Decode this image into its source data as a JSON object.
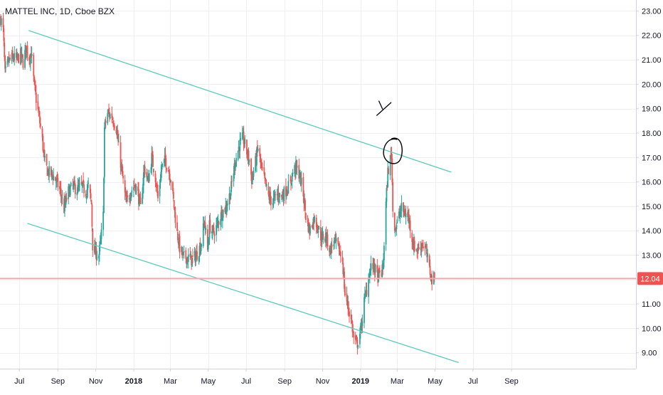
{
  "header": {
    "title": "MATTEL INC, 1D, Cboe BZX"
  },
  "chart_data": {
    "type": "candlestick",
    "title": "MATTEL INC, 1D, Cboe BZX",
    "ylim": [
      8.35,
      23.45
    ],
    "y_ticks": [
      9.0,
      10.0,
      11.0,
      12.0,
      13.0,
      14.0,
      15.0,
      16.0,
      17.0,
      18.0,
      19.0,
      20.0,
      21.0,
      22.0,
      23.0
    ],
    "y_tick_labels": [
      "9.00",
      "10.00",
      "11.00",
      "12.00",
      "13.00",
      "14.00",
      "15.00",
      "16.00",
      "17.00",
      "18.00",
      "19.00",
      "20.00",
      "21.00",
      "22.00",
      "23.00"
    ],
    "x_ticks": [
      {
        "label": "Jul",
        "date": "2017-07-01",
        "bold": false
      },
      {
        "label": "Sep",
        "date": "2017-09-01",
        "bold": false
      },
      {
        "label": "Nov",
        "date": "2017-11-01",
        "bold": false
      },
      {
        "label": "2018",
        "date": "2018-01-01",
        "bold": true
      },
      {
        "label": "Mar",
        "date": "2018-03-01",
        "bold": false
      },
      {
        "label": "May",
        "date": "2018-05-01",
        "bold": false
      },
      {
        "label": "Jul",
        "date": "2018-07-01",
        "bold": false
      },
      {
        "label": "Sep",
        "date": "2018-09-01",
        "bold": false
      },
      {
        "label": "Nov",
        "date": "2018-11-01",
        "bold": false
      },
      {
        "label": "2019",
        "date": "2019-01-01",
        "bold": true
      },
      {
        "label": "Mar",
        "date": "2019-03-01",
        "bold": false
      },
      {
        "label": "May",
        "date": "2019-05-01",
        "bold": false
      },
      {
        "label": "Jul",
        "date": "2019-07-01",
        "bold": false
      },
      {
        "label": "Sep",
        "date": "2019-09-01",
        "bold": false
      }
    ],
    "price_anchors": [
      [
        "2017-06-01",
        22.7
      ],
      [
        "2017-06-05",
        22.2
      ],
      [
        "2017-06-08",
        20.4
      ],
      [
        "2017-06-13",
        20.9
      ],
      [
        "2017-06-20",
        21.1
      ],
      [
        "2017-06-27",
        21.0
      ],
      [
        "2017-07-03",
        21.2
      ],
      [
        "2017-07-07",
        20.9
      ],
      [
        "2017-07-12",
        21.5
      ],
      [
        "2017-07-17",
        21.1
      ],
      [
        "2017-07-20",
        21.3
      ],
      [
        "2017-07-25",
        19.9
      ],
      [
        "2017-07-28",
        19.4
      ],
      [
        "2017-08-02",
        18.6
      ],
      [
        "2017-08-07",
        17.7
      ],
      [
        "2017-08-10",
        16.9
      ],
      [
        "2017-08-16",
        16.4
      ],
      [
        "2017-08-23",
        16.3
      ],
      [
        "2017-08-30",
        16.0
      ],
      [
        "2017-09-05",
        15.6
      ],
      [
        "2017-09-11",
        14.9
      ],
      [
        "2017-09-18",
        15.6
      ],
      [
        "2017-09-25",
        15.8
      ],
      [
        "2017-10-03",
        15.7
      ],
      [
        "2017-10-10",
        15.8
      ],
      [
        "2017-10-16",
        15.6
      ],
      [
        "2017-10-20",
        15.8
      ],
      [
        "2017-10-25",
        15.1
      ],
      [
        "2017-10-27",
        13.4
      ],
      [
        "2017-10-31",
        13.1
      ],
      [
        "2017-11-06",
        13.0
      ],
      [
        "2017-11-09",
        13.6
      ],
      [
        "2017-11-13",
        14.6
      ],
      [
        "2017-11-15",
        18.2
      ],
      [
        "2017-11-20",
        18.8
      ],
      [
        "2017-11-27",
        18.7
      ],
      [
        "2017-12-04",
        18.2
      ],
      [
        "2017-12-08",
        17.4
      ],
      [
        "2017-12-14",
        16.2
      ],
      [
        "2017-12-20",
        15.1
      ],
      [
        "2017-12-27",
        15.6
      ],
      [
        "2018-01-03",
        15.9
      ],
      [
        "2018-01-08",
        15.5
      ],
      [
        "2018-01-12",
        14.9
      ],
      [
        "2018-01-18",
        16.6
      ],
      [
        "2018-01-24",
        16.0
      ],
      [
        "2018-01-30",
        17.0
      ],
      [
        "2018-02-05",
        16.2
      ],
      [
        "2018-02-09",
        15.3
      ],
      [
        "2018-02-15",
        16.6
      ],
      [
        "2018-02-21",
        16.9
      ],
      [
        "2018-02-27",
        16.4
      ],
      [
        "2018-03-02",
        16.1
      ],
      [
        "2018-03-06",
        15.2
      ],
      [
        "2018-03-12",
        13.9
      ],
      [
        "2018-03-16",
        13.3
      ],
      [
        "2018-03-22",
        12.9
      ],
      [
        "2018-03-28",
        12.9
      ],
      [
        "2018-04-05",
        12.8
      ],
      [
        "2018-04-12",
        13.0
      ],
      [
        "2018-04-19",
        13.4
      ],
      [
        "2018-04-25",
        14.4
      ],
      [
        "2018-04-30",
        13.2
      ],
      [
        "2018-05-03",
        14.2
      ],
      [
        "2018-05-09",
        13.9
      ],
      [
        "2018-05-15",
        14.2
      ],
      [
        "2018-05-22",
        14.7
      ],
      [
        "2018-05-30",
        15.0
      ],
      [
        "2018-06-06",
        15.6
      ],
      [
        "2018-06-13",
        16.8
      ],
      [
        "2018-06-20",
        17.5
      ],
      [
        "2018-06-26",
        17.8
      ],
      [
        "2018-07-02",
        17.2
      ],
      [
        "2018-07-06",
        16.9
      ],
      [
        "2018-07-10",
        16.1
      ],
      [
        "2018-07-16",
        16.8
      ],
      [
        "2018-07-20",
        17.4
      ],
      [
        "2018-07-25",
        16.6
      ],
      [
        "2018-07-31",
        16.0
      ],
      [
        "2018-08-06",
        15.4
      ],
      [
        "2018-08-13",
        15.2
      ],
      [
        "2018-08-20",
        15.5
      ],
      [
        "2018-08-27",
        15.4
      ],
      [
        "2018-09-04",
        15.7
      ],
      [
        "2018-09-10",
        15.9
      ],
      [
        "2018-09-14",
        16.4
      ],
      [
        "2018-09-19",
        16.6
      ],
      [
        "2018-09-25",
        16.3
      ],
      [
        "2018-10-01",
        15.5
      ],
      [
        "2018-10-05",
        14.6
      ],
      [
        "2018-10-11",
        14.0
      ],
      [
        "2018-10-18",
        14.5
      ],
      [
        "2018-10-24",
        14.2
      ],
      [
        "2018-10-30",
        13.7
      ],
      [
        "2018-11-06",
        13.8
      ],
      [
        "2018-11-13",
        13.2
      ],
      [
        "2018-11-20",
        13.6
      ],
      [
        "2018-11-27",
        13.2
      ],
      [
        "2018-12-03",
        12.8
      ],
      [
        "2018-12-07",
        11.4
      ],
      [
        "2018-12-13",
        10.8
      ],
      [
        "2018-12-18",
        10.2
      ],
      [
        "2018-12-21",
        9.6
      ],
      [
        "2018-12-26",
        9.3
      ],
      [
        "2019-01-02",
        10.0
      ],
      [
        "2019-01-07",
        11.1
      ],
      [
        "2019-01-11",
        11.6
      ],
      [
        "2019-01-16",
        12.4
      ],
      [
        "2019-01-22",
        12.6
      ],
      [
        "2019-01-28",
        12.1
      ],
      [
        "2019-02-01",
        12.2
      ],
      [
        "2019-02-06",
        12.4
      ],
      [
        "2019-02-11",
        15.1
      ],
      [
        "2019-02-14",
        16.4
      ],
      [
        "2019-02-20",
        17.2
      ],
      [
        "2019-02-22",
        14.8
      ],
      [
        "2019-02-26",
        14.1
      ],
      [
        "2019-03-04",
        14.6
      ],
      [
        "2019-03-08",
        14.9
      ],
      [
        "2019-03-14",
        14.7
      ],
      [
        "2019-03-20",
        14.5
      ],
      [
        "2019-03-27",
        13.4
      ],
      [
        "2019-04-03",
        13.2
      ],
      [
        "2019-04-10",
        13.5
      ],
      [
        "2019-04-16",
        13.2
      ],
      [
        "2019-04-22",
        12.4
      ],
      [
        "2019-04-26",
        12.0
      ],
      [
        "2019-04-30",
        12.04
      ]
    ],
    "last_price": 12.04,
    "last_price_label": "12.04",
    "trend_lines": [
      {
        "from": [
          "2017-07-16",
          22.2
        ],
        "to": [
          "2019-05-27",
          16.4
        ]
      },
      {
        "from": [
          "2017-07-14",
          14.3
        ],
        "to": [
          "2019-06-08",
          8.6
        ]
      }
    ],
    "annotations": [
      {
        "type": "ellipse-circle",
        "center": [
          "2019-02-22",
          17.3
        ]
      },
      {
        "type": "checkmark",
        "anchor": [
          "2019-02-10",
          18.9
        ]
      }
    ],
    "colors": {
      "up": "#26a69a",
      "down": "#ef5350",
      "trend": "#5fc9bd",
      "last_price_line": "#f7a8a6",
      "last_price_badge": "#ef5350",
      "axis_border": "#d1d4dc",
      "grid": "#eef0f5",
      "annotation": "#000000"
    }
  }
}
